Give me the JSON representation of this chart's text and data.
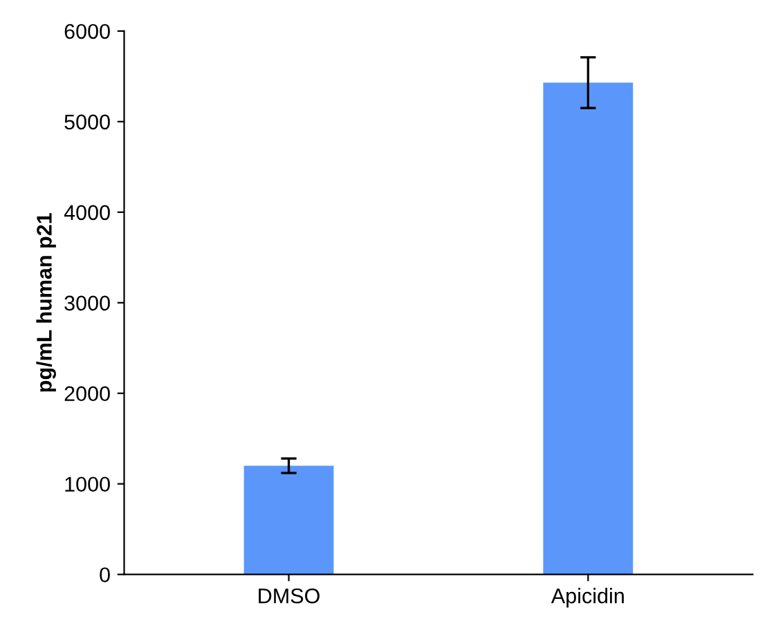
{
  "chart_data": {
    "type": "bar",
    "ylabel": "pg/mL human p21",
    "categories": [
      "DMSO",
      "Apicidin"
    ],
    "values": [
      1200,
      5430
    ],
    "errors": [
      80,
      280
    ],
    "color": "#5b97fb",
    "ylim": [
      0,
      6000
    ],
    "yticks": [
      0,
      1000,
      2000,
      3000,
      4000,
      5000,
      6000
    ],
    "grid": false
  }
}
